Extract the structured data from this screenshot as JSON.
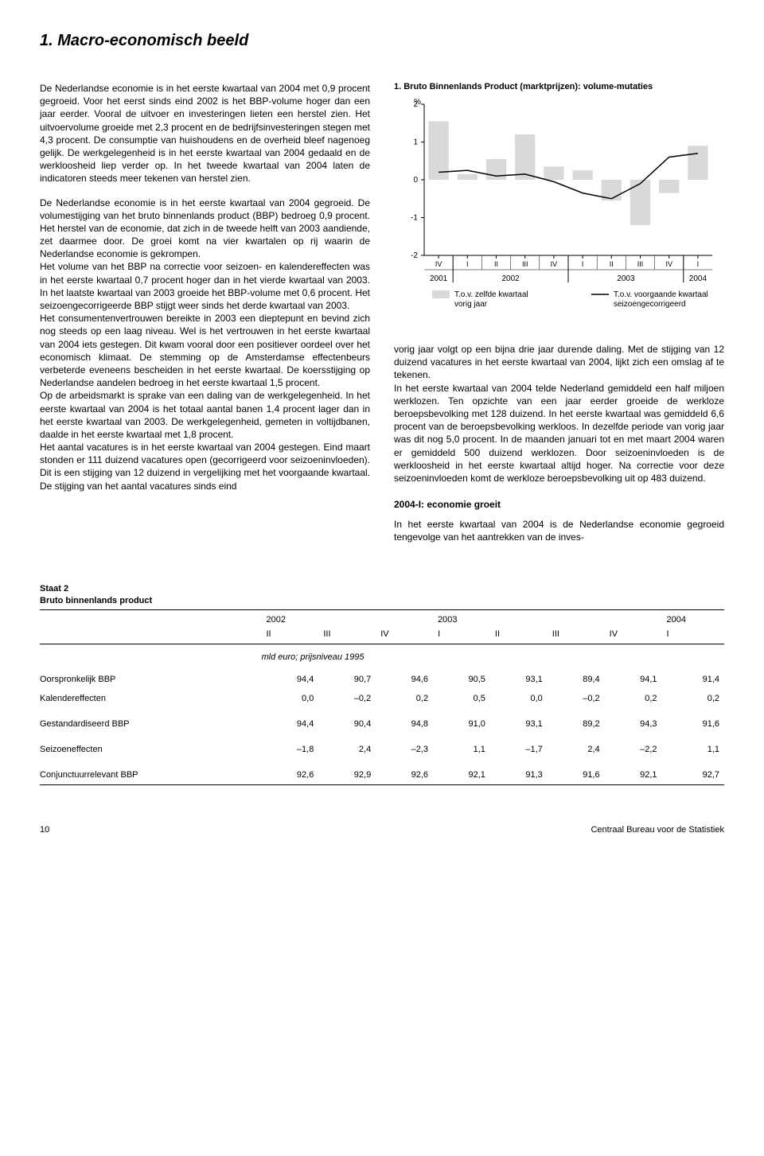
{
  "title": "1.   Macro-economisch beeld",
  "left_paras": [
    "De Nederlandse economie is in het eerste kwartaal van 2004 met 0,9 procent gegroeid. Voor het eerst sinds eind 2002 is het BBP-volume hoger dan een jaar eerder. Vooral de uitvoer en investeringen lieten een herstel zien. Het uitvoervolume groeide met 2,3 procent en de bedrijfsinvesteringen stegen met 4,3 procent. De consumptie van huishoudens en de overheid bleef nagenoeg gelijk. De werkgelegenheid is in het eerste kwartaal van 2004 gedaald en de werkloosheid liep verder op. In het tweede kwartaal van 2004 laten de indicatoren steeds meer tekenen van herstel zien.",
    "De Nederlandse economie is in het eerste kwartaal van 2004 gegroeid. De volumestijging van het bruto binnenlands product (BBP) bedroeg 0,9 procent. Het herstel van de economie, dat zich in de tweede helft van 2003 aandiende, zet daarmee door. De groei komt na vier kwartalen op rij waarin de Nederlandse economie is gekrompen.",
    "Het volume van het BBP na correctie voor seizoen- en kalendereffecten was in het eerste kwartaal 0,7 procent hoger dan in het vierde kwartaal van 2003. In het laatste kwartaal van 2003 groeide het BBP-volume met 0,6 procent. Het seizoengecorrigeerde BBP stijgt weer sinds het derde kwartaal van 2003.",
    "Het consumentenvertrouwen bereikte in 2003 een dieptepunt en bevind zich nog steeds op een laag niveau. Wel is het vertrouwen in het eerste kwartaal van 2004 iets gestegen. Dit kwam vooral door een positiever oordeel over het economisch klimaat. De stemming op de Amsterdamse effectenbeurs verbeterde eveneens bescheiden in het eerste kwartaal. De koersstijging op Nederlandse aandelen bedroeg in het eerste kwartaal 1,5 procent.",
    "Op de arbeidsmarkt is sprake van een daling van de werkgelegenheid. In het eerste kwartaal van 2004 is het totaal aantal banen 1,4 procent lager dan in het eerste kwartaal van 2003. De werkgelegenheid, gemeten in voltijdbanen, daalde in het eerste kwartaal met 1,8 procent.",
    "Het aantal vacatures is in het eerste kwartaal van 2004 gestegen. Eind maart stonden er 111 duizend vacatures open (gecorrigeerd voor seizoeninvloeden). Dit is een stijging van 12 duizend in vergelijking met het voorgaande kwartaal. De stijging van het aantal vacatures sinds eind"
  ],
  "chart": {
    "title": "1. Bruto Binnenlands Product (marktprijzen): volume-mutaties",
    "y_label": "%",
    "ylim": [
      -2,
      2
    ],
    "ytick_step": 1,
    "x_quarters": [
      "IV",
      "I",
      "II",
      "III",
      "IV",
      "I",
      "II",
      "III",
      "IV",
      "I"
    ],
    "x_years": [
      "2001",
      "2002",
      "2003",
      "2004"
    ],
    "bars": [
      1.55,
      0.15,
      0.55,
      1.2,
      0.35,
      0.25,
      -0.55,
      -1.2,
      -0.35,
      0.9
    ],
    "line": [
      0.2,
      0.25,
      0.1,
      0.15,
      -0.05,
      -0.35,
      -0.5,
      -0.1,
      0.6,
      0.7
    ],
    "colors": {
      "bar_fill": "#d9d9d9",
      "line": "#000000",
      "axis": "#000000",
      "background": "#ffffff",
      "tick": "#000000"
    },
    "legend": [
      {
        "swatch": "bar",
        "label": "T.o.v. zelfde kwartaal vorig jaar"
      },
      {
        "swatch": "line",
        "label": "T.o.v. voorgaande kwartaal seizoengecorrigeerd"
      }
    ]
  },
  "right_paras": [
    "vorig jaar volgt op een bijna drie jaar durende daling. Met de stijging van 12 duizend vacatures in het eerste kwartaal van 2004, lijkt zich een omslag af te tekenen.",
    "In het eerste kwartaal van 2004 telde Nederland gemiddeld een half miljoen werklozen. Ten opzichte van een jaar eerder groeide de werkloze beroepsbevolking met 128 duizend. In het eerste kwartaal was gemiddeld 6,6 procent van de beroepsbevolking werkloos. In dezelfde periode van vorig jaar was dit nog 5,0 procent. In de maanden januari tot en met maart 2004 waren er gemiddeld 500 duizend werklozen. Door seizoeninvloeden is de werkloosheid in het eerste kwartaal altijd hoger. Na correctie voor deze seizoeninvloeden komt de werkloze beroepsbevolking uit op 483 duizend."
  ],
  "subheading": "2004-I: economie groeit",
  "right_paras_after_sub": [
    "In het eerste kwartaal van 2004 is de Nederlandse economie gegroeid tengevolge van het aantrekken van de inves-"
  ],
  "table": {
    "caption_line1": "Staat 2",
    "caption_line2": "Bruto binnenlands product",
    "years": [
      "2002",
      "2003",
      "2004"
    ],
    "year_spans": [
      3,
      4,
      1
    ],
    "quarters": [
      "II",
      "III",
      "IV",
      "I",
      "II",
      "III",
      "IV",
      "I"
    ],
    "unit": "mld euro; prijsniveau 1995",
    "rows": [
      {
        "label": "Oorspronkelijk BBP",
        "vals": [
          "94,4",
          "90,7",
          "94,6",
          "90,5",
          "93,1",
          "89,4",
          "94,1",
          "91,4"
        ]
      },
      {
        "label": "Kalendereffecten",
        "vals": [
          "0,0",
          "–0,2",
          "0,2",
          "0,5",
          "0,0",
          "–0,2",
          "0,2",
          "0,2"
        ]
      },
      {
        "label": "Gestandardiseerd BBP",
        "vals": [
          "94,4",
          "90,4",
          "94,8",
          "91,0",
          "93,1",
          "89,2",
          "94,3",
          "91,6"
        ],
        "gap": true
      },
      {
        "label": "Seizoeneffecten",
        "vals": [
          "–1,8",
          "2,4",
          "–2,3",
          "1,1",
          "–1,7",
          "2,4",
          "–2,2",
          "1,1"
        ],
        "gap": true
      },
      {
        "label": "Conjunctuurrelevant BBP",
        "vals": [
          "92,6",
          "92,9",
          "92,6",
          "92,1",
          "91,3",
          "91,6",
          "92,1",
          "92,7"
        ],
        "gap": true
      }
    ]
  },
  "footer": {
    "page": "10",
    "source": "Centraal Bureau voor de Statistiek"
  }
}
